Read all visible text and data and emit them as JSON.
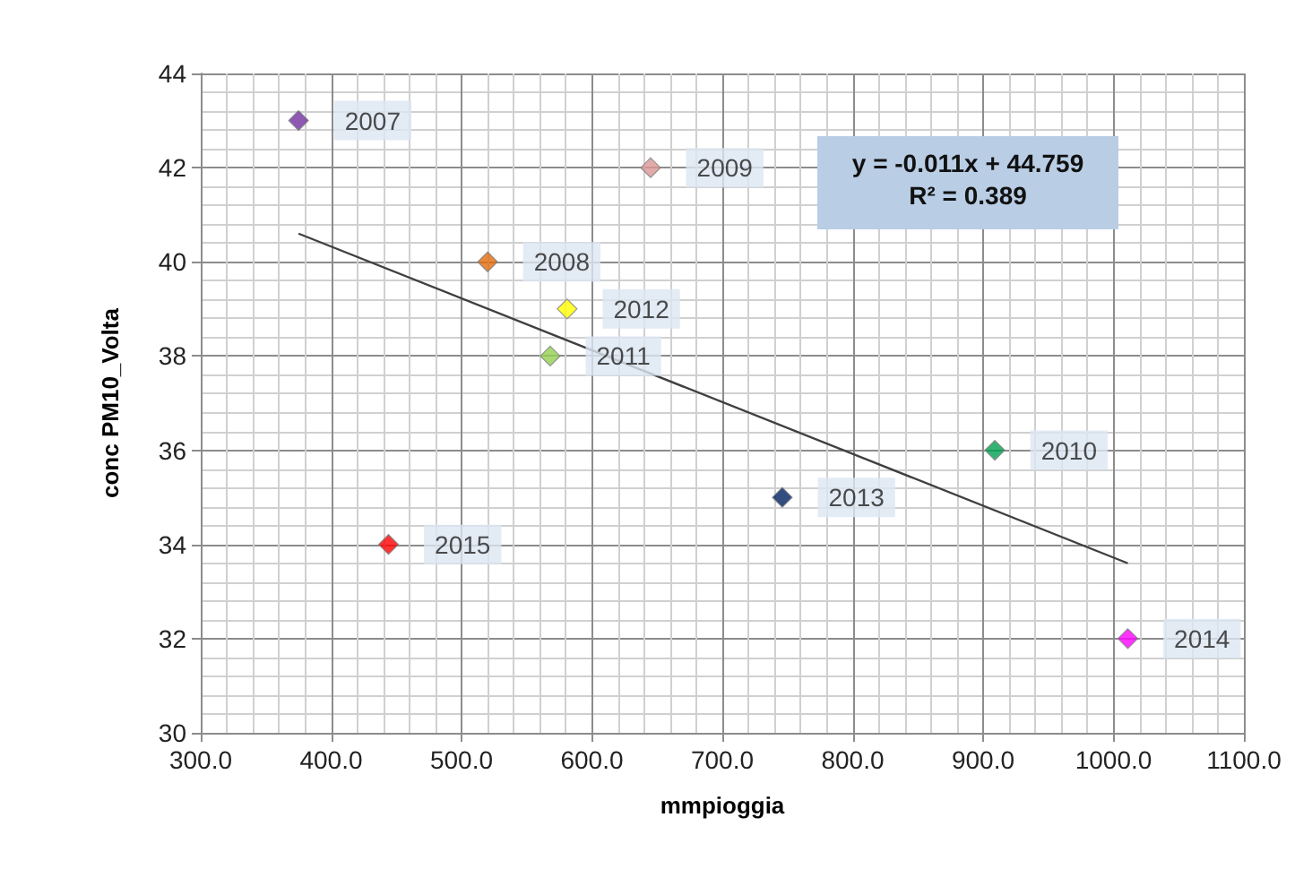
{
  "chart_data": {
    "type": "scatter",
    "xlabel": "mmpioggia",
    "ylabel": "conc PM10_Volta",
    "marker": "diamond",
    "series": [
      {
        "name": "2007",
        "color": "#7030a0",
        "x": [
          375
        ],
        "values": [
          43
        ]
      },
      {
        "name": "2008",
        "color": "#e36c0a",
        "x": [
          520
        ],
        "values": [
          40
        ]
      },
      {
        "name": "2009",
        "color": "#d99694",
        "x": [
          645
        ],
        "values": [
          42
        ]
      },
      {
        "name": "2010",
        "color": "#00a050",
        "x": [
          909
        ],
        "values": [
          36
        ]
      },
      {
        "name": "2011",
        "color": "#92d050",
        "x": [
          568
        ],
        "values": [
          38
        ]
      },
      {
        "name": "2012",
        "color": "#ffff00",
        "x": [
          581
        ],
        "values": [
          39
        ]
      },
      {
        "name": "2013",
        "color": "#002060",
        "x": [
          746
        ],
        "values": [
          35
        ]
      },
      {
        "name": "2014",
        "color": "#ff00ff",
        "x": [
          1011
        ],
        "values": [
          32
        ]
      },
      {
        "name": "2015",
        "color": "#ff0000",
        "x": [
          444
        ],
        "values": [
          34
        ]
      },
      {
        "type": "line",
        "x": [
          375,
          1011
        ],
        "values": [
          40.6,
          33.6
        ],
        "color": "#404040",
        "marker": "none",
        "line_style": "solid"
      }
    ],
    "annotations": [
      "y = -0.011x + 44.759",
      "R² = 0.389"
    ],
    "xlim": [
      300,
      1100
    ],
    "xticks": [
      {
        "value": 300,
        "label": "300.0"
      },
      {
        "value": 400,
        "label": "400.0"
      },
      {
        "value": 500,
        "label": "500.0"
      },
      {
        "value": 600,
        "label": "600.0"
      },
      {
        "value": 700,
        "label": "700.0"
      },
      {
        "value": 800,
        "label": "800.0"
      },
      {
        "value": 900,
        "label": "900.0"
      },
      {
        "value": 1000,
        "label": "1000.0"
      },
      {
        "value": 1100,
        "label": "1100.0"
      }
    ],
    "ylim": [
      30,
      44
    ],
    "yticks": [
      30,
      32,
      34,
      36,
      38,
      40,
      42,
      44
    ],
    "grid": true
  }
}
